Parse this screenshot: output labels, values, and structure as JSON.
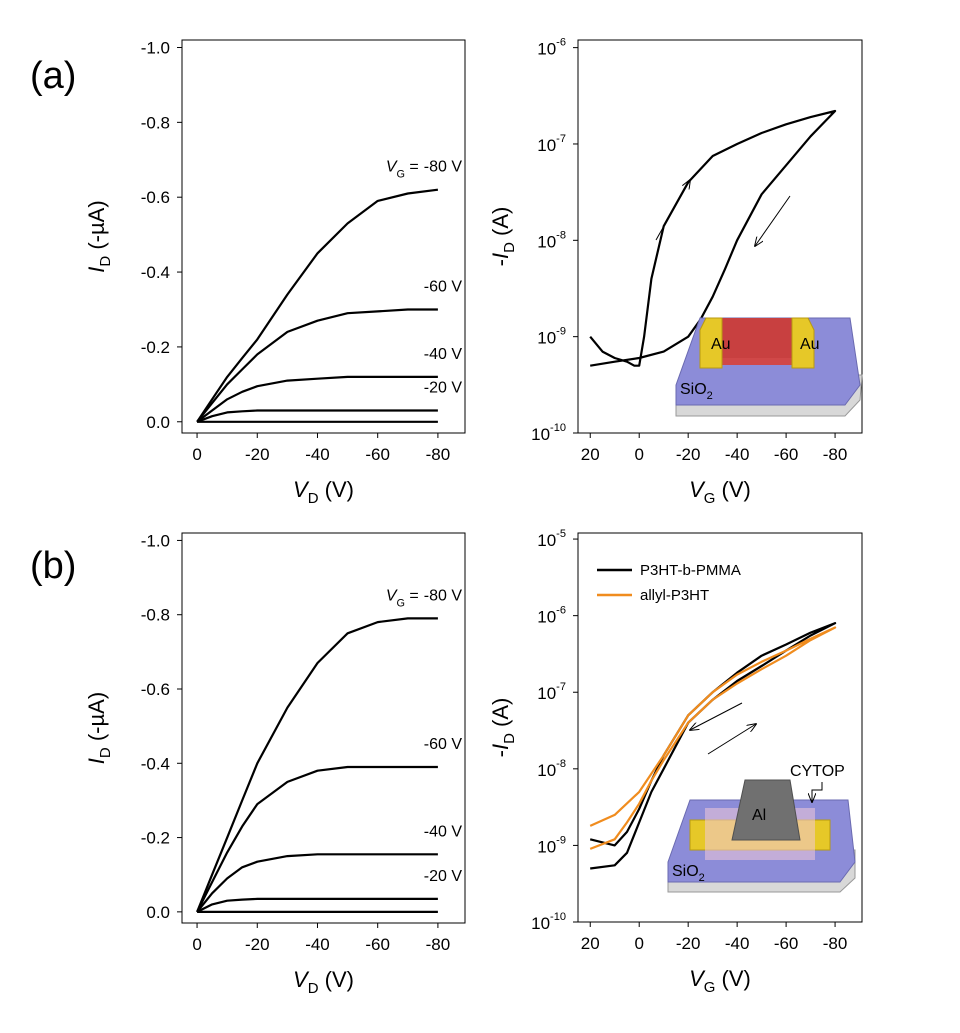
{
  "panel_labels": [
    "(a)",
    "(b)"
  ],
  "insets": [
    {
      "labels": [
        "Au",
        "Au"
      ],
      "substrate": {
        "main": "SiO",
        "sub": "2"
      }
    },
    {
      "labels": [
        "Al",
        "CYTOP"
      ],
      "substrate": {
        "main": "SiO",
        "sub": "2"
      }
    }
  ],
  "chart_data": [
    {
      "type": "line",
      "x_label": {
        "main": "V",
        "sub": "D",
        "rest": " (V)"
      },
      "y_label": {
        "main": "I",
        "sub": "D",
        "rest": " (-µA)"
      },
      "series_label_prefix": {
        "main": "V",
        "sub": "G",
        "rest": " ="
      },
      "xlim": [
        5,
        -89
      ],
      "xticks": [
        0,
        -20,
        -40,
        -60,
        -80
      ],
      "ylim": [
        0.03,
        -1.02
      ],
      "yticks": [
        {
          "value": -1,
          "label": "-1.0"
        },
        -0.8,
        -0.6,
        -0.4,
        -0.2,
        {
          "value": 0,
          "label": "0.0"
        }
      ],
      "x": [
        0,
        -5,
        -10,
        -15,
        -20,
        -30,
        -40,
        -50,
        -60,
        -70,
        -80
      ],
      "series": [
        {
          "name": "-80 V",
          "color": "#000000",
          "values": [
            0,
            -0.06,
            -0.12,
            -0.17,
            -0.22,
            -0.34,
            -0.45,
            -0.53,
            -0.59,
            -0.61,
            -0.62
          ]
        },
        {
          "name": "-60 V",
          "color": "#000000",
          "values": [
            0,
            -0.05,
            -0.1,
            -0.14,
            -0.18,
            -0.24,
            -0.27,
            -0.29,
            -0.295,
            -0.3,
            -0.3
          ]
        },
        {
          "name": "-40 V",
          "color": "#000000",
          "values": [
            0,
            -0.03,
            -0.06,
            -0.08,
            -0.095,
            -0.11,
            -0.115,
            -0.12,
            -0.12,
            -0.12,
            -0.12
          ]
        },
        {
          "name": "-20 V",
          "color": "#000000",
          "values": [
            0,
            -0.015,
            -0.025,
            -0.028,
            -0.03,
            -0.03,
            -0.03,
            -0.03,
            -0.03,
            -0.03,
            -0.03
          ]
        },
        {
          "color": "#000000",
          "values": [
            0,
            0,
            0,
            0,
            0,
            0,
            0,
            0,
            0,
            0,
            0
          ]
        }
      ]
    },
    {
      "type": "line",
      "log_y": true,
      "x_label": {
        "main": "V",
        "sub": "G",
        "rest": " (V)"
      },
      "y_label": {
        "pre": "-",
        "main": "I",
        "sub": "D",
        "rest": " (A)"
      },
      "xlim": [
        25,
        -91
      ],
      "xticks": [
        20,
        0,
        -20,
        -40,
        -60,
        -80
      ],
      "ylim": [
        1e-10,
        1.2e-06
      ],
      "yticks": [
        {
          "value": 1e-10,
          "label": "10",
          "exp": "-10"
        },
        {
          "value": 1e-09,
          "label": "10",
          "exp": "-9"
        },
        {
          "value": 1e-08,
          "label": "10",
          "exp": "-8"
        },
        {
          "value": 1e-07,
          "label": "10",
          "exp": "-7"
        },
        {
          "value": 1e-06,
          "label": "10",
          "exp": "-6"
        }
      ],
      "series": [
        {
          "color": "#000000",
          "x": [
            20,
            15,
            10,
            5,
            2,
            0,
            -2,
            -5,
            -10,
            -20,
            -30,
            -40,
            -50,
            -60,
            -70,
            -80,
            -70,
            -60,
            -50,
            -40,
            -35,
            -30,
            -25,
            -20,
            -10,
            0,
            10,
            20
          ],
          "values": [
            1e-09,
            7e-10,
            6e-10,
            5.5e-10,
            5e-10,
            5e-10,
            1e-09,
            4e-09,
            1.4e-08,
            4e-08,
            7.5e-08,
            1e-07,
            1.3e-07,
            1.6e-07,
            1.9e-07,
            2.2e-07,
            1.2e-07,
            6e-08,
            3e-08,
            1e-08,
            5e-09,
            2.6e-09,
            1.5e-09,
            1e-09,
            7e-10,
            6e-10,
            5.5e-10,
            5e-10
          ]
        }
      ]
    },
    {
      "type": "line",
      "x_label": {
        "main": "V",
        "sub": "D",
        "rest": " (V)"
      },
      "y_label": {
        "main": "I",
        "sub": "D",
        "rest": " (-µA)"
      },
      "series_label_prefix": {
        "main": "V",
        "sub": "G",
        "rest": " ="
      },
      "xlim": [
        5,
        -89
      ],
      "xticks": [
        0,
        -20,
        -40,
        -60,
        -80
      ],
      "ylim": [
        0.03,
        -1.02
      ],
      "yticks": [
        {
          "value": -1,
          "label": "-1.0"
        },
        -0.8,
        -0.6,
        -0.4,
        -0.2,
        {
          "value": 0,
          "label": "0.0"
        }
      ],
      "x": [
        0,
        -5,
        -10,
        -15,
        -20,
        -30,
        -40,
        -50,
        -60,
        -70,
        -80
      ],
      "series": [
        {
          "name": "-80 V",
          "color": "#000000",
          "values": [
            0,
            -0.1,
            -0.2,
            -0.3,
            -0.4,
            -0.55,
            -0.67,
            -0.75,
            -0.78,
            -0.79,
            -0.79
          ]
        },
        {
          "name": "-60 V",
          "color": "#000000",
          "values": [
            0,
            -0.08,
            -0.16,
            -0.23,
            -0.29,
            -0.35,
            -0.38,
            -0.39,
            -0.39,
            -0.39,
            -0.39
          ]
        },
        {
          "name": "-40 V",
          "color": "#000000",
          "values": [
            0,
            -0.05,
            -0.09,
            -0.12,
            -0.135,
            -0.15,
            -0.155,
            -0.155,
            -0.155,
            -0.155,
            -0.155
          ]
        },
        {
          "name": "-20 V",
          "color": "#000000",
          "values": [
            0,
            -0.02,
            -0.03,
            -0.033,
            -0.035,
            -0.035,
            -0.035,
            -0.035,
            -0.035,
            -0.035,
            -0.035
          ]
        },
        {
          "color": "#000000",
          "values": [
            0,
            0,
            0,
            0,
            0,
            0,
            0,
            0,
            0,
            0,
            0
          ]
        }
      ]
    },
    {
      "type": "line",
      "log_y": true,
      "legend": "upper left",
      "x_label": {
        "main": "V",
        "sub": "G",
        "rest": " (V)"
      },
      "y_label": {
        "pre": "-",
        "main": "I",
        "sub": "D",
        "rest": " (A)"
      },
      "xlim": [
        25,
        -91
      ],
      "xticks": [
        20,
        0,
        -20,
        -40,
        -60,
        -80
      ],
      "ylim": [
        1e-10,
        1.2e-05
      ],
      "yticks": [
        {
          "value": 1e-10,
          "label": "10",
          "exp": "-10"
        },
        {
          "value": 1e-09,
          "label": "10",
          "exp": "-9"
        },
        {
          "value": 1e-08,
          "label": "10",
          "exp": "-8"
        },
        {
          "value": 1e-07,
          "label": "10",
          "exp": "-7"
        },
        {
          "value": 1e-06,
          "label": "10",
          "exp": "-6"
        },
        {
          "value": 1e-05,
          "label": "10",
          "exp": "-5"
        }
      ],
      "series": [
        {
          "name": "P3HT-b-PMMA",
          "color": "#000000",
          "x": [
            20,
            10,
            5,
            0,
            -5,
            -10,
            -15,
            -20,
            -30,
            -40,
            -50,
            -60,
            -70,
            -80,
            -70,
            -60,
            -50,
            -40,
            -30,
            -20,
            -10,
            -5,
            0,
            5,
            10,
            20
          ],
          "values": [
            5e-10,
            5.5e-10,
            8e-10,
            2e-09,
            5e-09,
            1e-08,
            2e-08,
            4e-08,
            8e-08,
            1.4e-07,
            2.2e-07,
            3.5e-07,
            5.5e-07,
            8e-07,
            6e-07,
            4.2e-07,
            3e-07,
            1.8e-07,
            1e-07,
            5e-08,
            1.5e-08,
            7e-09,
            3e-09,
            1.5e-09,
            1e-09,
            1.2e-09
          ]
        },
        {
          "name": "allyl-P3HT",
          "color": "#f08c1e",
          "x": [
            20,
            10,
            5,
            0,
            -5,
            -10,
            -20,
            -30,
            -40,
            -50,
            -60,
            -70,
            -80,
            -70,
            -60,
            -50,
            -40,
            -30,
            -20,
            -10,
            0,
            10,
            20
          ],
          "values": [
            9e-10,
            1.2e-09,
            2e-09,
            3.5e-09,
            7e-09,
            1.3e-08,
            4e-08,
            8e-08,
            1.3e-07,
            2e-07,
            3e-07,
            4.8e-07,
            7e-07,
            5e-07,
            3.5e-07,
            2.5e-07,
            1.7e-07,
            1e-07,
            5e-08,
            1.5e-08,
            5e-09,
            2.5e-09,
            1.8e-09
          ]
        }
      ]
    }
  ]
}
